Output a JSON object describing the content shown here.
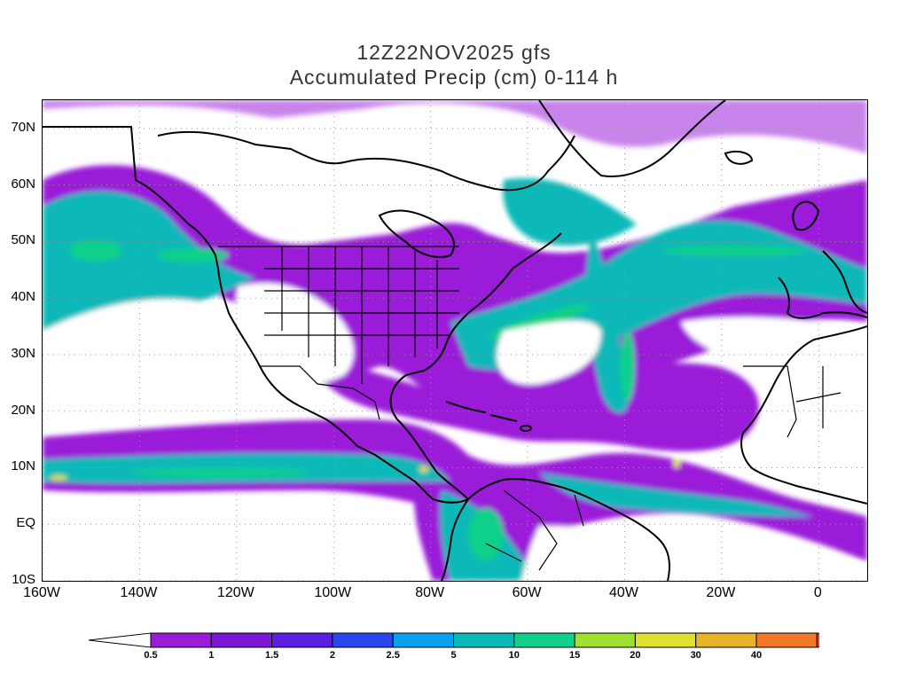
{
  "title": {
    "line1": "12Z22NOV2025 gfs",
    "line2": "Accumulated Precip (cm) 0-114 h"
  },
  "axes": {
    "lat_labels": [
      "70N",
      "60N",
      "50N",
      "40N",
      "30N",
      "20N",
      "10N",
      "EQ",
      "10S"
    ],
    "lat_values": [
      70,
      60,
      50,
      40,
      30,
      20,
      10,
      0,
      -10
    ],
    "lon_labels": [
      "160W",
      "140W",
      "120W",
      "100W",
      "80W",
      "60W",
      "40W",
      "20W",
      "0"
    ],
    "lon_values": [
      -160,
      -140,
      -120,
      -100,
      -80,
      -60,
      -40,
      -20,
      0
    ],
    "lat_range": [
      -10,
      75
    ],
    "lon_range": [
      -160,
      10
    ]
  },
  "colorbar": {
    "labels": [
      "0.5",
      "1",
      "1.5",
      "2",
      "2.5",
      "5",
      "10",
      "15",
      "20",
      "30",
      "40"
    ],
    "colors": [
      "#ffffff",
      "#9a1bd8",
      "#7d16d6",
      "#5a1ee0",
      "#2a46f0",
      "#0aa0f0",
      "#0ab8b8",
      "#10d08a",
      "#a0e030",
      "#e0e030",
      "#e8b428",
      "#f07828",
      "#f03c3c"
    ]
  },
  "precip_colors": {
    "purple": "#9a1bd8",
    "violet": "#7d16d6",
    "cyan": "#0ab8b8",
    "green": "#10d08a",
    "yellow": "#e0e030"
  }
}
